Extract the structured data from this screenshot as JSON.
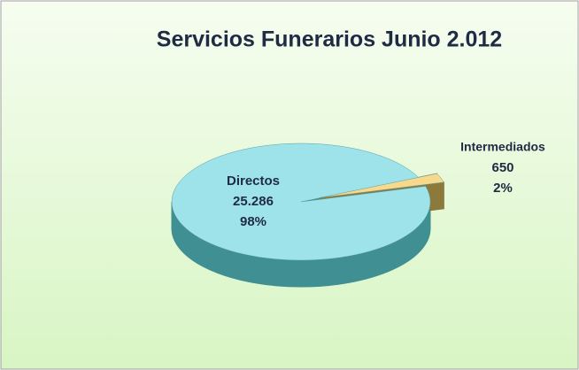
{
  "chart_data": {
    "type": "pie",
    "title": "Servicios Funerarios Junio 2.012",
    "categories": [
      "Directos",
      "Intermediados"
    ],
    "values": [
      25286,
      650
    ],
    "value_labels": [
      "25.286",
      "650"
    ],
    "percents": [
      98,
      2
    ],
    "percent_labels": [
      "98%",
      "2%"
    ],
    "colors": [
      "#9fe3ea",
      "#f6d98c"
    ],
    "side_colors": [
      "#3f8f93",
      "#8c7a3c"
    ],
    "legend": false
  }
}
